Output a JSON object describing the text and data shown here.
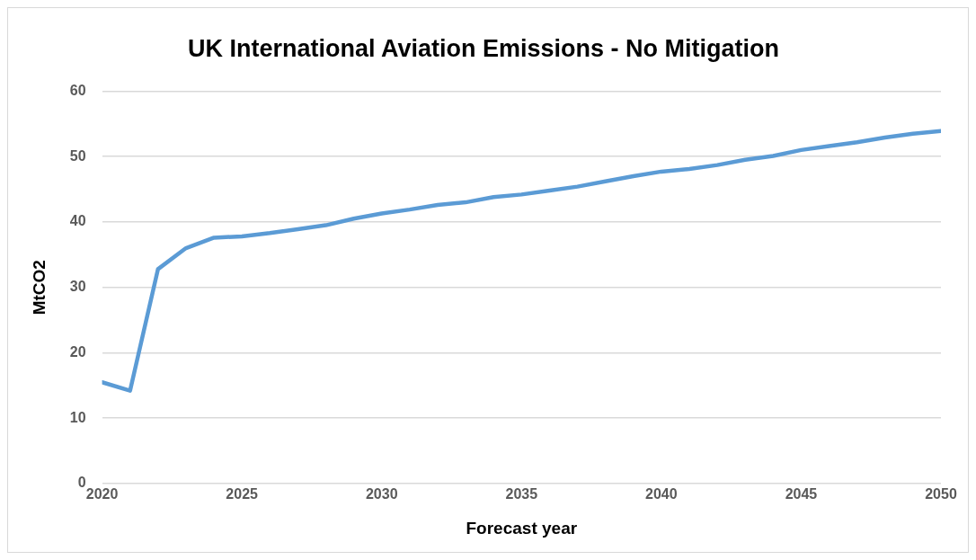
{
  "chart_data": {
    "type": "line",
    "title": "UK International Aviation Emissions - No Mitigation",
    "xlabel": "Forecast year",
    "ylabel": "MtCO2",
    "x": [
      2020,
      2021,
      2022,
      2023,
      2024,
      2025,
      2026,
      2027,
      2028,
      2029,
      2030,
      2031,
      2032,
      2033,
      2034,
      2035,
      2036,
      2037,
      2038,
      2039,
      2040,
      2041,
      2042,
      2043,
      2044,
      2045,
      2046,
      2047,
      2048,
      2049,
      2050
    ],
    "series": [
      {
        "color": "#5b9bd5",
        "values": [
          15.5,
          14.2,
          32.8,
          36.0,
          37.6,
          37.8,
          38.3,
          38.9,
          39.5,
          40.5,
          41.3,
          41.9,
          42.6,
          43.0,
          43.8,
          44.2,
          44.8,
          45.4,
          46.2,
          47.0,
          47.7,
          48.1,
          48.7,
          49.5,
          50.1,
          51.0,
          51.6,
          52.2,
          52.9,
          53.5,
          53.9
        ]
      }
    ],
    "xlim": [
      2020,
      2050
    ],
    "xticks": [
      2020,
      2025,
      2030,
      2035,
      2040,
      2045,
      2050
    ],
    "ylim": [
      0,
      60
    ],
    "yticks": [
      0,
      10,
      20,
      30,
      40,
      50,
      60
    ],
    "grid": "y",
    "legend": false,
    "marker": "none",
    "line_style": "solid"
  }
}
